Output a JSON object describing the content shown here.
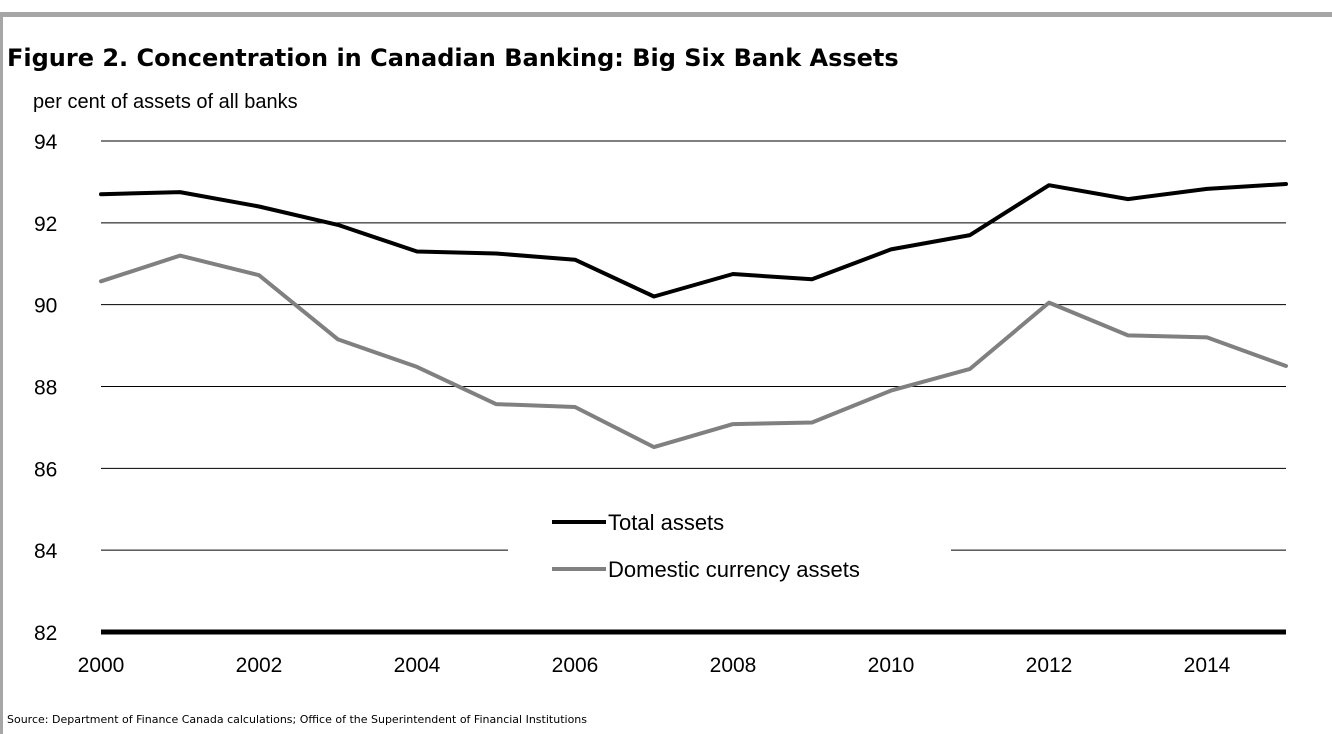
{
  "chart_data": {
    "type": "line",
    "title": "Figure 2. Concentration in Canadian Banking: Big Six Bank Assets",
    "ylabel": "per cent of assets of all banks",
    "xlabel": "",
    "source": "Source: Department of Finance Canada calculations; Office of the Superintendent of Financial Institutions",
    "ylim": [
      82,
      94
    ],
    "xlim": [
      2000,
      2015
    ],
    "yticks": [
      "82",
      "84",
      "86",
      "88",
      "90",
      "92",
      "94"
    ],
    "xticks": [
      "2000",
      "2002",
      "2004",
      "2006",
      "2008",
      "2010",
      "2012",
      "2014"
    ],
    "grid": true,
    "legend_position": "center",
    "x": [
      2000,
      2001,
      2002,
      2003,
      2004,
      2005,
      2006,
      2007,
      2008,
      2009,
      2010,
      2011,
      2012,
      2013,
      2014,
      2015
    ],
    "series": [
      {
        "name": "Total assets",
        "color": "#000000",
        "values": [
          92.7,
          92.75,
          92.4,
          91.95,
          91.3,
          91.25,
          91.1,
          90.2,
          90.75,
          90.62,
          91.35,
          91.7,
          92.92,
          92.58,
          92.83,
          92.95
        ]
      },
      {
        "name": "Domestic currency assets",
        "color": "#808080",
        "values": [
          90.57,
          91.2,
          90.72,
          89.15,
          88.48,
          87.57,
          87.5,
          86.52,
          87.08,
          87.12,
          87.9,
          88.43,
          90.05,
          89.25,
          89.2,
          88.5
        ]
      }
    ]
  }
}
